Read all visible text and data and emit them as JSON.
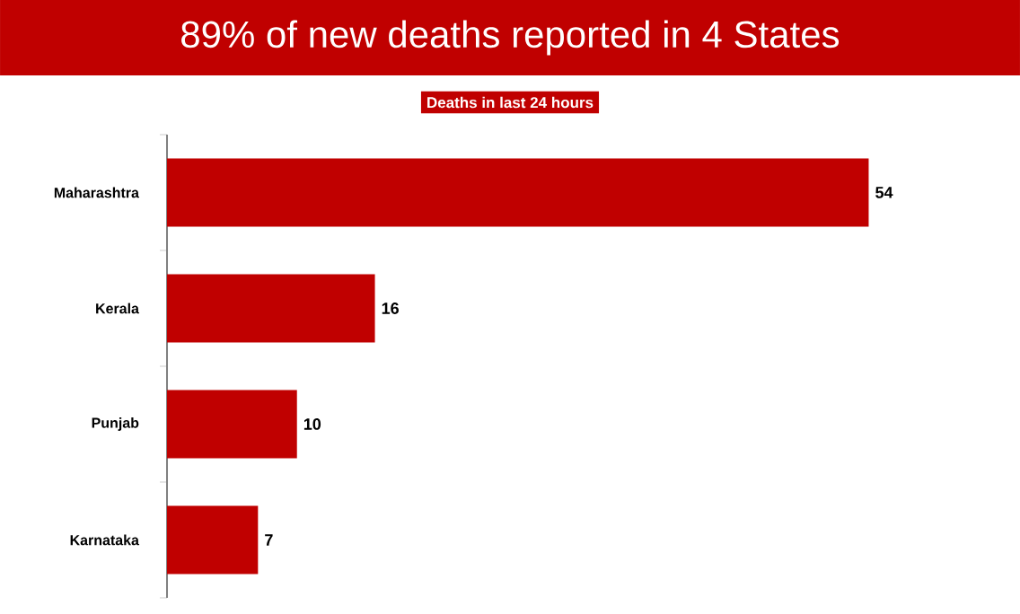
{
  "chart_data": {
    "type": "bar",
    "orientation": "horizontal",
    "title": "89% of new deaths reported in 4 States",
    "subtitle": "Deaths in last 24 hours",
    "categories": [
      "Maharashtra",
      "Kerala",
      "Punjab",
      "Karnataka"
    ],
    "values": [
      54,
      16,
      10,
      7
    ],
    "color": "#c00000",
    "data_labels": true,
    "tick_labels": "y"
  }
}
